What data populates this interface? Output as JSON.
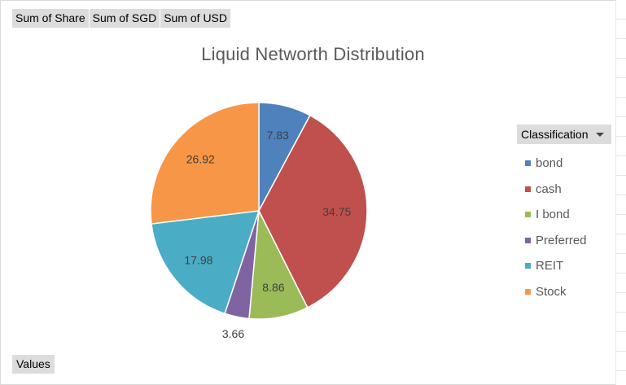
{
  "field_buttons": [
    "Sum of Share",
    "Sum of SGD",
    "Sum of USD"
  ],
  "values_button": "Values",
  "legend": {
    "header": "Classification",
    "dropdown_icon": "chevron-down-icon"
  },
  "chart_data": {
    "type": "pie",
    "title": "Liquid Networth Distribution",
    "categories": [
      "bond",
      "cash",
      "I bond",
      "Preferred",
      "REIT",
      "Stock"
    ],
    "values": [
      7.83,
      34.75,
      8.86,
      3.66,
      17.98,
      26.92
    ],
    "labels": [
      "7.83",
      "34.75",
      "8.86",
      "3.66",
      "17.98",
      "26.92"
    ],
    "colors": [
      "#4f81bd",
      "#c0504d",
      "#9bbb59",
      "#8064a2",
      "#4bacc6",
      "#f79646"
    ],
    "legend_position": "right"
  }
}
